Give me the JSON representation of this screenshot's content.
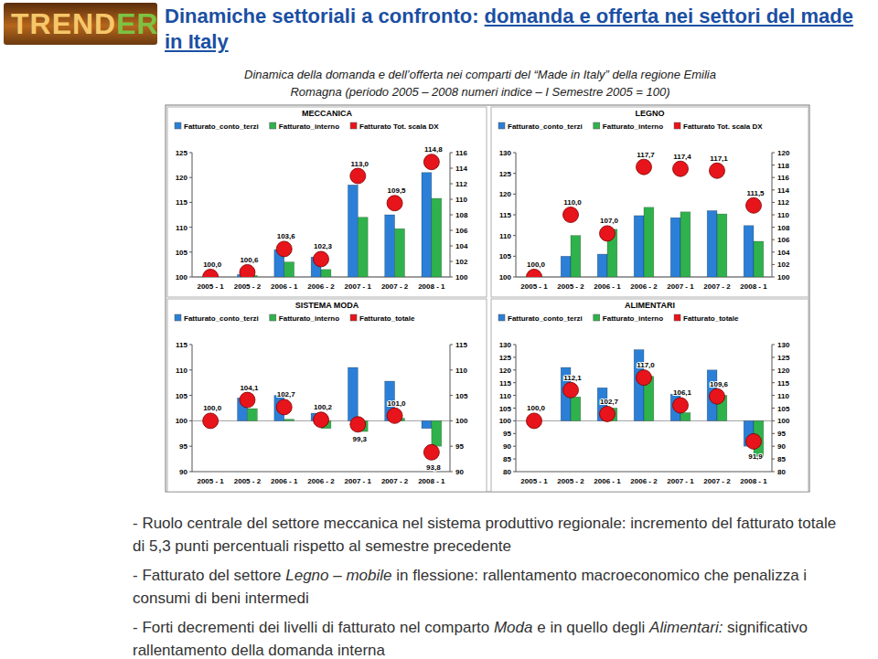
{
  "header": {
    "logo_main": "TREND",
    "logo_accent": "ER",
    "title": "Dinamiche settoriali a confronto: ",
    "title_link": "domanda e offerta nei settori del made in Italy",
    "subtitle": [
      "Dinamica della domanda e dell’offerta nei comparti del “Made in Italy” della regione Emilia",
      "Romagna (periodo 2005 – 2008 numeri indice – I Semestre 2005 = 100)"
    ]
  },
  "chart_data": [
    {
      "type": "bar",
      "title": "MECCANICA",
      "categories": [
        "2005 - 1",
        "2005 - 2",
        "2006 - 1",
        "2006 - 2",
        "2007 - 1",
        "2007 - 2",
        "2008 - 1"
      ],
      "baseline": 100,
      "series": [
        {
          "name": "Fatturato_conto_terzi",
          "type": "bar",
          "color": "#2b7fd6",
          "values": [
            100,
            100.5,
            105.5,
            104,
            118.5,
            112.5,
            121
          ]
        },
        {
          "name": "Fatturato_interno",
          "type": "bar",
          "color": "#2fb24c",
          "values": [
            100,
            100.3,
            103,
            101.5,
            112,
            109.7,
            115.8
          ]
        },
        {
          "name": "Fatturato Tot. scala DX",
          "type": "line",
          "line_style": "none",
          "marker": "circle",
          "color": "#e8141b",
          "axis": "y2",
          "data_labels": true,
          "values": [
            100,
            100.6,
            103.6,
            102.3,
            113,
            109.5,
            114.8
          ],
          "value_labels": [
            "100,0",
            "100,6",
            "103,6",
            "102,3",
            "113,0",
            "109,5",
            "114,8"
          ]
        }
      ],
      "ylim": [
        100,
        125
      ],
      "yticks": [
        100,
        105,
        110,
        115,
        120,
        125
      ],
      "y2lim": [
        100,
        116
      ],
      "y2ticks": [
        100,
        102,
        104,
        106,
        108,
        110,
        112,
        114,
        116
      ],
      "grid": false,
      "legend": "top"
    },
    {
      "type": "bar",
      "title": "LEGNO",
      "categories": [
        "2005 - 1",
        "2005 - 2",
        "2006 - 1",
        "2006 - 2",
        "2007 - 1",
        "2007 - 2",
        "2008 - 1"
      ],
      "baseline": 100,
      "series": [
        {
          "name": "Fatturato_conto_terzi",
          "type": "bar",
          "color": "#2b7fd6",
          "values": [
            100,
            105,
            105.5,
            114.8,
            114.3,
            116,
            112.4
          ]
        },
        {
          "name": "Fatturato_interno",
          "type": "bar",
          "color": "#2fb24c",
          "values": [
            100,
            110,
            111.5,
            116.8,
            115.7,
            115.2,
            108.6
          ]
        },
        {
          "name": "Fatturato Tot. scala DX",
          "type": "line",
          "line_style": "none",
          "marker": "circle",
          "color": "#e8141b",
          "axis": "y2",
          "data_labels": true,
          "values": [
            100,
            110,
            107,
            117.7,
            117.4,
            117.1,
            111.5
          ],
          "value_labels": [
            "100,0",
            "110,0",
            "107,0",
            "117,7",
            "117,4",
            "117,1",
            "111,5"
          ]
        }
      ],
      "ylim": [
        100,
        130
      ],
      "yticks": [
        100,
        105,
        110,
        115,
        120,
        125,
        130
      ],
      "y2lim": [
        100,
        120
      ],
      "y2ticks": [
        100,
        102,
        104,
        106,
        108,
        110,
        112,
        114,
        116,
        118,
        120
      ],
      "grid": false,
      "legend": "top"
    },
    {
      "type": "bar",
      "title": "SISTEMA MODA",
      "categories": [
        "2005 - 1",
        "2005 - 2",
        "2006 - 1",
        "2006 - 2",
        "2007 - 1",
        "2007 - 2",
        "2008 - 1"
      ],
      "baseline": 100,
      "series": [
        {
          "name": "Fatturato_conto_terzi",
          "type": "bar",
          "color": "#2b7fd6",
          "values": [
            100,
            104.5,
            105,
            101.5,
            110.5,
            107.8,
            98.5
          ]
        },
        {
          "name": "Fatturato_interno",
          "type": "bar",
          "color": "#2fb24c",
          "values": [
            100,
            102.4,
            100.3,
            98.5,
            97.9,
            100.5,
            95
          ]
        },
        {
          "name": "Fatturato_totale",
          "type": "line",
          "line_style": "none",
          "marker": "circle",
          "color": "#e8141b",
          "axis": "y2",
          "data_labels": true,
          "values": [
            100,
            104.1,
            102.7,
            100.2,
            99.3,
            101,
            93.8
          ],
          "value_labels": [
            "100,0",
            "104,1",
            "102,7",
            "100,2",
            "99,3",
            "101,0",
            "93,8"
          ]
        }
      ],
      "ylim": [
        90,
        115
      ],
      "yticks": [
        90,
        95,
        100,
        105,
        110,
        115
      ],
      "y2lim": [
        90,
        115
      ],
      "y2ticks": [
        90,
        95,
        100,
        105,
        110,
        115
      ],
      "grid": false,
      "legend": "top"
    },
    {
      "type": "bar",
      "title": "ALIMENTARI",
      "categories": [
        "2005 - 1",
        "2005 - 2",
        "2006 - 1",
        "2006 - 2",
        "2007 - 1",
        "2007 - 2",
        "2008 - 1"
      ],
      "baseline": 100,
      "series": [
        {
          "name": "Fatturato_conto_terzi",
          "type": "bar",
          "color": "#2b7fd6",
          "values": [
            100,
            121,
            113,
            128,
            110.5,
            120,
            90
          ]
        },
        {
          "name": "Fatturato_interno",
          "type": "bar",
          "color": "#2fb24c",
          "values": [
            100,
            109.4,
            105,
            117.5,
            103.2,
            110,
            86
          ]
        },
        {
          "name": "Fatturato_totale",
          "type": "line",
          "line_style": "none",
          "marker": "circle",
          "color": "#e8141b",
          "axis": "y2",
          "data_labels": true,
          "values": [
            100,
            112.1,
            102.7,
            117,
            106.1,
            109.6,
            91.9
          ],
          "value_labels": [
            "100,0",
            "112,1",
            "102,7",
            "117,0",
            "106,1",
            "109,6",
            "91,9"
          ]
        }
      ],
      "ylim": [
        80,
        130
      ],
      "yticks": [
        80,
        85,
        90,
        95,
        100,
        105,
        110,
        115,
        120,
        125,
        130
      ],
      "y2lim": [
        80,
        130
      ],
      "y2ticks": [
        80,
        85,
        90,
        95,
        100,
        105,
        110,
        115,
        120,
        125,
        130
      ],
      "grid": false,
      "legend": "top"
    }
  ],
  "notes": [
    [
      {
        "text": "- Ruolo centrale del settore meccanica nel sistema produttivo regionale: incremento del fatturato totale di 5,3 punti percentuali rispetto al semestre precedente"
      }
    ],
    [
      {
        "text": "- Fatturato del settore "
      },
      {
        "text": "Legno – mobile",
        "italic": true
      },
      {
        "text": " in flessione: rallentamento macroeconomico che penalizza i consumi di beni intermedi"
      }
    ],
    [
      {
        "text": "- Forti decrementi dei livelli di fatturato nel comparto "
      },
      {
        "text": "Moda",
        "italic": true
      },
      {
        "text": " e in quello degli "
      },
      {
        "text": "Alimentari:",
        "italic": true
      },
      {
        "text": " significativo rallentamento della domanda interna"
      }
    ]
  ]
}
